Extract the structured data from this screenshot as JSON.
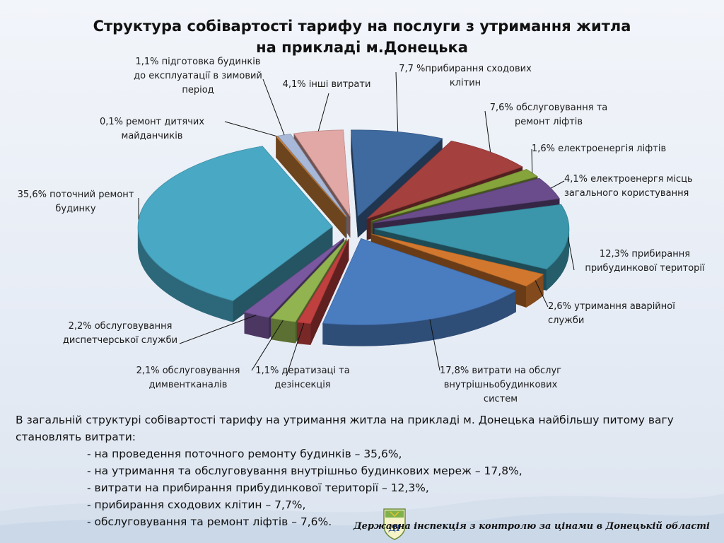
{
  "title": {
    "line1": "Структура собівартості тарифу на послуги з утримання житла",
    "line2": "на прикладі м.Донецька"
  },
  "chart_data": {
    "type": "pie",
    "title": "Структура собівартості тарифу на послуги з утримання житла на прикладі м.Донецька",
    "unit": "%",
    "slices": [
      {
        "label": "прибирання сходових клітин",
        "value": 7.7,
        "color": "#3e6a9f",
        "text": [
          "7,7 %прибирання сходових",
          "клітин"
        ]
      },
      {
        "label": "обслуговування та ремонт ліфтів",
        "value": 7.6,
        "color": "#a4403e",
        "text": [
          "7,6% обслуговування та",
          "ремонт ліфтів"
        ]
      },
      {
        "label": "електроенергія ліфтів",
        "value": 1.6,
        "color": "#86a43c",
        "text": [
          "1,6% електроенергія ліфтів"
        ]
      },
      {
        "label": "електроенергя місць загального користування",
        "value": 4.1,
        "color": "#6a4c8c",
        "text": [
          "4,1% електроенергя місць",
          "загального користування"
        ]
      },
      {
        "label": "прибирання прибудинкової території",
        "value": 12.3,
        "color": "#3b96ab",
        "text": [
          "12,3% прибирання",
          "прибудинкової території"
        ]
      },
      {
        "label": "утримання аварійної служби",
        "value": 2.6,
        "color": "#d2782e",
        "text": [
          "2,6% утримання аварійної",
          "служби"
        ]
      },
      {
        "label": "витрати на обслуг внутрішньобудинкових систем",
        "value": 17.8,
        "color": "#4a7cc0",
        "text": [
          "17,8% витрати на обслуг",
          "внутрішньобудинкових",
          "систем"
        ]
      },
      {
        "label": "дератизаці та дезінсекція",
        "value": 1.1,
        "color": "#c0403f",
        "text": [
          "1,1% дератизаці та",
          "дезінсекція"
        ]
      },
      {
        "label": "обслуговування димвентканалів",
        "value": 2.1,
        "color": "#92b450",
        "text": [
          "2,1% обслуговування",
          "димвентканалів"
        ]
      },
      {
        "label": "обслуговування диспетчерської служби",
        "value": 2.2,
        "color": "#7a58a0",
        "text": [
          "2,2% обслуговування",
          "диспетчерської служби"
        ]
      },
      {
        "label": "поточний ремонт будинку",
        "value": 35.6,
        "color": "#49a8c4",
        "text": [
          "35,6% поточний ремонт",
          "будинку"
        ]
      },
      {
        "label": "ремонт дитячих майданчиків",
        "value": 0.1,
        "color": "#d88a3c",
        "text": [
          "0,1% ремонт  дитячих",
          "майданчиків"
        ]
      },
      {
        "label": "підготовка будинків до експлуатації в зимовий період",
        "value": 1.1,
        "color": "#a8b8d8",
        "text": [
          "1,1% підготовка будинків",
          "до експлуатації в зимовий",
          "період"
        ]
      },
      {
        "label": "інші витрати",
        "value": 4.1,
        "color": "#e2a8a6",
        "text": [
          "4,1% інші витрати"
        ]
      }
    ]
  },
  "summary": {
    "intro": "В загальній  структурі собівартості  тарифу на утримання житла на прикладі м. Донецька найбільшу питому вагу становлять витрати:",
    "items": [
      "- на проведення поточного ремонту будинків – 35,6%,",
      "- на утримання та обслуговування внутрішньо будинкових мереж – 17,8%,",
      "- витрати на  прибирання прибудинкової території – 12,3%,",
      "- прибирання сходових клітин – 7,7%,",
      "- обслуговування та ремонт ліфтів – 7,6%."
    ]
  },
  "footer": {
    "text": "Державна інспекція з контролю за цінами в Донецькій області",
    "logo_text": "ДІ"
  }
}
